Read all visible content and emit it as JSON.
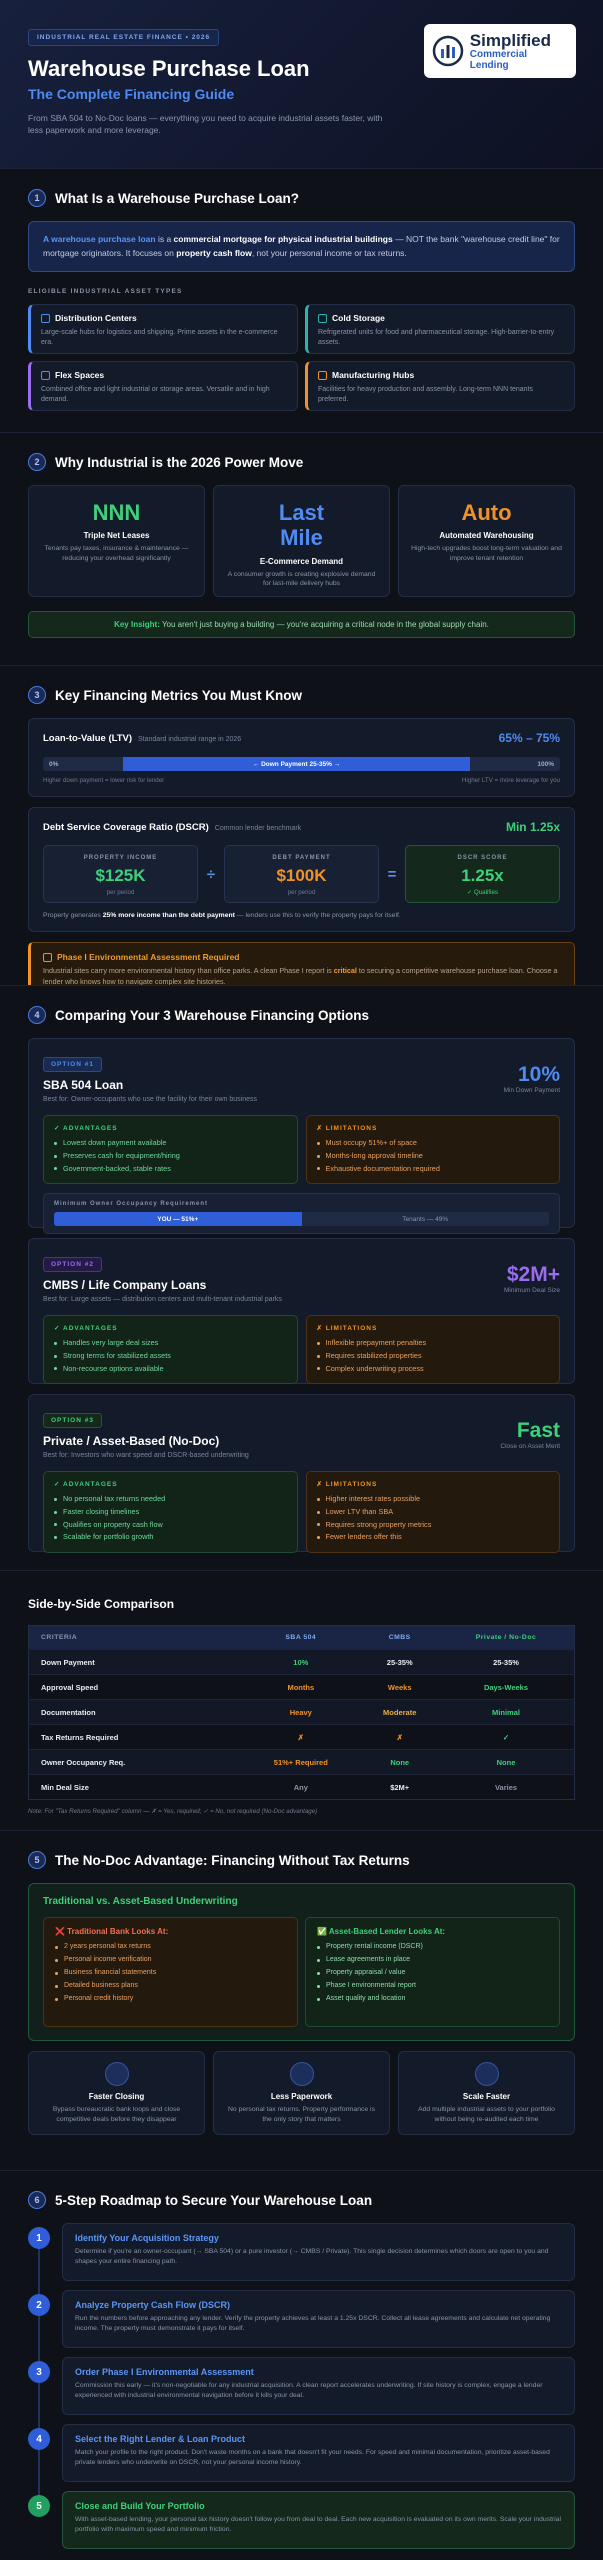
{
  "header": {
    "badge": "INDUSTRIAL REAL ESTATE FINANCE • 2026",
    "title": "Warehouse Purchase Loan",
    "subtitle": "The Complete Financing Guide",
    "description": "From SBA 504 to No-Doc loans — everything you need to acquire industrial assets faster, with less paperwork and more leverage.",
    "logo": {
      "name": "Simplified",
      "sub": "Commercial Lending"
    }
  },
  "section1": {
    "number": "1",
    "title": "What Is a Warehouse Purchase Loan?",
    "callout": [
      "A warehouse purchase loan",
      " is a ",
      "commercial mortgage for physical industrial buildings",
      " — NOT the bank \"warehouse credit line\" for mortgage originators. It focuses on ",
      "property cash flow",
      ", not your personal income or tax returns."
    ],
    "asset_label": "ELIGIBLE INDUSTRIAL ASSET TYPES",
    "assets": [
      {
        "title": "Distribution Centers",
        "text": "Large-scale hubs for logistics and shipping. Prime assets in the e-commerce era."
      },
      {
        "title": "Cold Storage",
        "text": "Refrigerated units for food and pharmaceutical storage. High-barrier-to-entry assets."
      },
      {
        "title": "Flex Spaces",
        "text": "Combined office and light industrial or storage areas. Versatile and in high demand."
      },
      {
        "title": "Manufacturing Hubs",
        "text": "Facilities for heavy production and assembly. Long-term NNN tenants preferred."
      }
    ]
  },
  "section2": {
    "number": "2",
    "title": "Why Industrial is the 2026 Power Move",
    "stats": [
      {
        "big": "NNN",
        "title": "Triple Net Leases",
        "text": "Tenants pay taxes, insurance & maintenance — reducing your overhead significantly"
      },
      {
        "big": "Last Mile",
        "title": "E-Commerce Demand",
        "text": "A consumer growth is creating explosive demand for last-mile delivery hubs"
      },
      {
        "big": "Auto",
        "title": "Automated Warehousing",
        "text": "High-tech upgrades boost long-term valuation and improve tenant retention"
      }
    ],
    "insight_label": "Key Insight:",
    "insight": "You aren't just buying a building — you're acquiring a critical node in the global supply chain."
  },
  "section3": {
    "number": "3",
    "title": "Key Financing Metrics You Must Know",
    "ltv": {
      "title": "Loan-to-Value (LTV)",
      "sub": "Standard industrial range in 2026",
      "range": "65% – 75%",
      "start": "0%",
      "middle": "← Down Payment 25-35% →",
      "end": "100%",
      "note_left": "Higher down payment = lower risk for lender",
      "note_right": "Higher LTV = more leverage for you"
    },
    "dscr": {
      "title": "Debt Service Coverage Ratio (DSCR)",
      "sub": "Common lender benchmark",
      "min": "Min 1.25x",
      "boxes": [
        {
          "label": "PROPERTY INCOME",
          "value": "$125K",
          "sub": "per period"
        },
        {
          "label": "DEBT PAYMENT",
          "value": "$100K",
          "sub": "per period"
        },
        {
          "label": "DSCR SCORE",
          "value": "1.25x",
          "sub": "✓ Qualifies"
        }
      ],
      "ops": [
        "÷",
        "="
      ],
      "note": [
        "Property generates ",
        "25% more income than the debt payment",
        " — lenders use this to verify the property pays for itself."
      ]
    },
    "warning": {
      "title": "Phase I Environmental Assessment Required",
      "text": [
        "Industrial sites carry more environmental history than office parks. A clean Phase I report is ",
        "critical",
        " to securing a competitive warehouse purchase loan. Choose a lender who knows how to navigate complex site histories."
      ]
    }
  },
  "section4": {
    "number": "4",
    "title": "Comparing Your 3 Warehouse Financing Options",
    "adv_label": "✓ ADVANTAGES",
    "lim_label": "✗ LIMITATIONS",
    "options": [
      {
        "tag": "OPTION #1",
        "title": "SBA 504 Loan",
        "best": "Best for: Owner-occupants who use the facility for their own business",
        "stat": "10%",
        "stat_label": "Min Down Payment",
        "advantages": [
          "Lowest down payment available",
          "Preserves cash for equipment/hiring",
          "Government-backed, stable rates"
        ],
        "limitations": [
          "Must occupy 51%+ of space",
          "Months-long approval timeline",
          "Exhaustive documentation required"
        ],
        "occupancy": {
          "title": "Minimum Owner Occupancy Requirement",
          "you": "YOU — 51%+",
          "tenants": "Tenants — 49%"
        }
      },
      {
        "tag": "OPTION #2",
        "title": "CMBS / Life Company Loans",
        "best": "Best for: Large assets — distribution centers and multi-tenant industrial parks",
        "stat": "$2M+",
        "stat_label": "Minimum Deal Size",
        "advantages": [
          "Handles very large deal sizes",
          "Strong terms for stabilized assets",
          "Non-recourse options available"
        ],
        "limitations": [
          "Inflexible prepayment penalties",
          "Requires stabilized properties",
          "Complex underwriting process"
        ]
      },
      {
        "tag": "OPTION #3",
        "title": "Private / Asset-Based (No-Doc)",
        "best": "Best for: Investors who want speed and DSCR-based underwriting",
        "stat": "Fast",
        "stat_label": "Close on Asset Merit",
        "advantages": [
          "No personal tax returns needed",
          "Faster closing timelines",
          "Qualifies on property cash flow",
          "Scalable for portfolio growth"
        ],
        "limitations": [
          "Higher interest rates possible",
          "Lower LTV than SBA",
          "Requires strong property metrics",
          "Fewer lenders offer this"
        ]
      }
    ]
  },
  "comparison": {
    "title": "Side-by-Side Comparison",
    "header": [
      "CRITERIA",
      "SBA 504",
      "CMBS",
      "Private / No-Doc"
    ],
    "rows": [
      [
        "Down Payment",
        "10%",
        "25-35%",
        "25-35%"
      ],
      [
        "Approval Speed",
        "Months",
        "Weeks",
        "Days-Weeks"
      ],
      [
        "Documentation",
        "Heavy",
        "Moderate",
        "Minimal"
      ],
      [
        "Tax Returns Required",
        "✗",
        "✗",
        "✓"
      ],
      [
        "Owner Occupancy Req.",
        "51%+ Required",
        "None",
        "None"
      ],
      [
        "Min Deal Size",
        "Any",
        "$2M+",
        "Varies"
      ]
    ],
    "note": "Note: For \"Tax Returns Required\" column — ✗ = Yes, required; ✓ = No, not required (No-Doc advantage)"
  },
  "section5": {
    "number": "5",
    "title": "The No-Doc Advantage: Financing Without Tax Returns",
    "box_title": "Traditional vs. Asset-Based Underwriting",
    "traditional": {
      "title": "❌ Traditional Bank Looks At:",
      "items": [
        "2 years personal tax returns",
        "Personal income verification",
        "Business financial statements",
        "Detailed business plans",
        "Personal credit history"
      ]
    },
    "asset": {
      "title": "✅ Asset-Based Lender Looks At:",
      "items": [
        "Property rental income (DSCR)",
        "Lease agreements in place",
        "Property appraisal / value",
        "Phase I environmental report",
        "Asset quality and location"
      ]
    },
    "cards": [
      {
        "title": "Faster Closing",
        "text": "Bypass bureaucratic bank loops and close competitive deals before they disappear"
      },
      {
        "title": "Less Paperwork",
        "text": "No personal tax returns. Property performance is the only story that matters"
      },
      {
        "title": "Scale Faster",
        "text": "Add multiple industrial assets to your portfolio without being re-audited each time"
      }
    ]
  },
  "section6": {
    "number": "6",
    "title": "5-Step Roadmap to Secure Your Warehouse Loan",
    "steps": [
      {
        "number": "1",
        "title": "Identify Your Acquisition Strategy",
        "text": "Determine if you're an owner-occupant (→ SBA 504) or a pure investor (→ CMBS / Private). This single decision determines which doors are open to you and shapes your entire financing path."
      },
      {
        "number": "2",
        "title": "Analyze Property Cash Flow (DSCR)",
        "text": "Run the numbers before approaching any lender. Verify the property achieves at least a 1.25x DSCR. Collect all lease agreements and calculate net operating income. The property must demonstrate it pays for itself."
      },
      {
        "number": "3",
        "title": "Order Phase I Environmental Assessment",
        "text": "Commission this early — it's non-negotiable for any industrial acquisition. A clean report accelerates underwriting. If site history is complex, engage a lender experienced with industrial environmental navigation before it kills your deal."
      },
      {
        "number": "4",
        "title": "Select the Right Lender & Loan Product",
        "text": "Match your profile to the right product. Don't waste months on a bank that doesn't fit your needs. For speed and minimal documentation, prioritize asset-based private lenders who underwrite on DSCR, not your personal income history."
      },
      {
        "number": "5",
        "title": "Close and Build Your Portfolio",
        "text": "With asset-based lending, your personal tax history doesn't follow you from deal to deal. Each new acquisition is evaluated on its own merits. Scale your industrial portfolio with maximum speed and minimum friction."
      }
    ]
  }
}
